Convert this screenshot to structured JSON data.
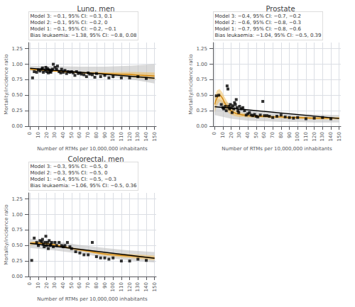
{
  "chart_data": [
    {
      "type": "scatter",
      "title": "Lung, men",
      "xlabel": "Number of RTMs per 10,000,000 inhabitants",
      "ylabel": "Mortality/incidence ratio",
      "xlim": [
        -2,
        152
      ],
      "ylim": [
        0.0,
        1.35
      ],
      "xticks": [
        0,
        10,
        20,
        30,
        40,
        50,
        60,
        70,
        80,
        90,
        100,
        110,
        120,
        130,
        140,
        150
      ],
      "yticks": [
        {
          "value": 0.0,
          "label": "0.00"
        },
        0.25,
        {
          "value": 0.5,
          "label": "0.50"
        },
        0.75,
        {
          "value": 1.0,
          "label": "1.00"
        },
        1.25
      ],
      "grid": true,
      "annotation": "Model 3: −0.1, 95% CI: −0.3, 0.1\nModel 2: −0.1, 95% CI: −0.2, 0\nModel 1: −0.1, 95% CI: −0.2, −0.1\nBias leukaemia: −1.38, 95% CI: −0.8, 0.08",
      "series": [
        {
          "type": "band",
          "color": "#bbbbbb",
          "x": [
            0,
            30,
            60,
            90,
            120,
            150
          ],
          "lower": [
            0.895,
            0.88,
            0.85,
            0.81,
            0.76,
            0.69
          ],
          "upper": [
            0.975,
            0.97,
            0.96,
            0.96,
            0.975,
            1.0
          ]
        },
        {
          "type": "band",
          "color": "#F0C060",
          "x": [
            0,
            5,
            10,
            15,
            20,
            25,
            30,
            35,
            40,
            50,
            60,
            70,
            80,
            90,
            100,
            110,
            120,
            130,
            140,
            150
          ],
          "lower": [
            0.905,
            0.902,
            0.898,
            0.894,
            0.89,
            0.885,
            0.88,
            0.875,
            0.868,
            0.862,
            0.85,
            0.844,
            0.836,
            0.827,
            0.817,
            0.806,
            0.794,
            0.777,
            0.766,
            0.752
          ],
          "upper": [
            0.935,
            0.928,
            0.922,
            0.916,
            0.91,
            0.905,
            0.9,
            0.895,
            0.892,
            0.888,
            0.88,
            0.876,
            0.874,
            0.873,
            0.873,
            0.874,
            0.876,
            0.873,
            0.87,
            0.868
          ]
        },
        {
          "type": "line",
          "color": "#D4860A",
          "x": [
            0,
            5,
            10,
            15,
            20,
            25,
            30,
            35,
            40,
            50,
            60,
            70,
            80,
            90,
            100,
            110,
            120,
            130,
            140,
            150
          ],
          "values": [
            0.92,
            0.915,
            0.91,
            0.905,
            0.9,
            0.895,
            0.89,
            0.885,
            0.88,
            0.875,
            0.865,
            0.86,
            0.855,
            0.85,
            0.845,
            0.84,
            0.835,
            0.825,
            0.818,
            0.81
          ]
        },
        {
          "type": "line",
          "color": "black",
          "x": [
            0,
            150
          ],
          "values": [
            0.935,
            0.775
          ]
        },
        {
          "type": "scatter",
          "color": "black",
          "marker": "square",
          "x": [
            3,
            5,
            8,
            10,
            12,
            14,
            15,
            16,
            18,
            19,
            20,
            21,
            22,
            23,
            24,
            25,
            26,
            27,
            28,
            30,
            32,
            33,
            35,
            37,
            38,
            40,
            42,
            44,
            46,
            48,
            50,
            52,
            54,
            56,
            58,
            60,
            62,
            65,
            68,
            70,
            72,
            75,
            78,
            80,
            85,
            90,
            95,
            100,
            110,
            120,
            130,
            140
          ],
          "values": [
            0.78,
            0.88,
            0.87,
            0.91,
            0.89,
            0.92,
            0.94,
            0.87,
            0.9,
            0.95,
            0.88,
            0.93,
            0.86,
            0.91,
            0.88,
            0.87,
            0.9,
            0.92,
            1.0,
            0.95,
            0.92,
            0.97,
            0.88,
            0.86,
            0.92,
            0.87,
            0.9,
            0.85,
            0.88,
            0.87,
            0.88,
            0.86,
            0.82,
            0.88,
            0.85,
            0.86,
            0.84,
            0.83,
            0.8,
            0.86,
            0.84,
            0.83,
            0.79,
            0.85,
            0.8,
            0.82,
            0.78,
            0.8,
            0.78,
            0.78,
            0.8,
            0.77
          ]
        }
      ]
    },
    {
      "type": "scatter",
      "title": "Prostate",
      "xlabel": "Number of RTMs per 10,000,000 inhabitants",
      "ylabel": "Mortality/incidence ratio",
      "xlim": [
        -2,
        152
      ],
      "ylim": [
        0.0,
        1.35
      ],
      "xticks": [
        0,
        10,
        20,
        30,
        40,
        50,
        60,
        70,
        80,
        90,
        100,
        110,
        120,
        130,
        140,
        150
      ],
      "yticks": [
        {
          "value": 0.0,
          "label": "0.00"
        },
        0.25,
        {
          "value": 0.5,
          "label": "0.50"
        },
        0.75,
        {
          "value": 1.0,
          "label": "1.00"
        },
        1.25
      ],
      "grid": true,
      "annotation": "Model 3: −0.4, 95% CI: −0.7, −0.2\nModel 2: −0.6, 95% CI: −0.8, −0.3\nModel 1: −0.7, 95% CI: −0.8, −0.6\nBias leukaemia: −1.04, 95% CI: −0.5, 0.39",
      "series": [
        {
          "type": "band",
          "color": "#bbbbbb",
          "x": [
            0,
            20,
            40,
            60,
            80,
            100,
            120,
            150
          ],
          "lower": [
            0.18,
            0.12,
            0.09,
            0.08,
            0.07,
            0.07,
            0.06,
            0.06
          ],
          "upper": [
            0.46,
            0.36,
            0.27,
            0.23,
            0.21,
            0.2,
            0.19,
            0.18
          ]
        },
        {
          "type": "band",
          "color": "#F0C060",
          "x": [
            0,
            3,
            6,
            9,
            12,
            15,
            18,
            21,
            25,
            30,
            35,
            40,
            50,
            60,
            70,
            80,
            90,
            100,
            120,
            140,
            150
          ],
          "lower": [
            0.22,
            0.34,
            0.4,
            0.37,
            0.29,
            0.24,
            0.2,
            0.18,
            0.16,
            0.15,
            0.15,
            0.14,
            0.14,
            0.14,
            0.13,
            0.13,
            0.12,
            0.12,
            0.11,
            0.11,
            0.11
          ],
          "upper": [
            0.48,
            0.58,
            0.6,
            0.55,
            0.47,
            0.4,
            0.34,
            0.3,
            0.26,
            0.23,
            0.21,
            0.2,
            0.18,
            0.18,
            0.17,
            0.17,
            0.16,
            0.16,
            0.15,
            0.15,
            0.15
          ]
        },
        {
          "type": "line",
          "color": "#D4860A",
          "x": [
            0,
            3,
            6,
            9,
            12,
            15,
            18,
            21,
            25,
            30,
            35,
            40,
            50,
            60,
            70,
            80,
            90,
            100,
            120,
            140,
            150
          ],
          "values": [
            0.35,
            0.46,
            0.5,
            0.46,
            0.38,
            0.32,
            0.27,
            0.24,
            0.21,
            0.19,
            0.18,
            0.17,
            0.16,
            0.16,
            0.15,
            0.15,
            0.14,
            0.14,
            0.13,
            0.13,
            0.13
          ]
        },
        {
          "type": "line",
          "color": "black",
          "x": [
            0,
            150
          ],
          "values": [
            0.315,
            0.125
          ]
        },
        {
          "type": "scatter",
          "color": "black",
          "marker": "square",
          "x": [
            2,
            5,
            8,
            10,
            11,
            13,
            14,
            15,
            16,
            17,
            18,
            19,
            20,
            21,
            22,
            23,
            24,
            25,
            26,
            27,
            28,
            29,
            30,
            32,
            34,
            36,
            38,
            40,
            42,
            44,
            46,
            48,
            50,
            52,
            55,
            58,
            60,
            63,
            66,
            70,
            75,
            80,
            85,
            90,
            95,
            100,
            110,
            120,
            130,
            140
          ],
          "values": [
            0.49,
            0.5,
            0.35,
            0.3,
            0.28,
            0.32,
            0.25,
            0.65,
            0.6,
            0.32,
            0.28,
            0.35,
            0.3,
            0.22,
            0.33,
            0.28,
            0.38,
            0.35,
            0.43,
            0.3,
            0.25,
            0.22,
            0.32,
            0.28,
            0.3,
            0.25,
            0.18,
            0.2,
            0.22,
            0.18,
            0.17,
            0.19,
            0.16,
            0.15,
            0.18,
            0.4,
            0.17,
            0.17,
            0.16,
            0.14,
            0.16,
            0.18,
            0.15,
            0.14,
            0.13,
            0.14,
            0.12,
            0.13,
            0.14,
            0.12
          ]
        }
      ]
    },
    {
      "type": "scatter",
      "title": "Colorectal, men",
      "xlabel": "Number of RTMs per 10,000,000 inhabitants",
      "ylabel": "Mortality/incidence ratio",
      "xlim": [
        -2,
        152
      ],
      "ylim": [
        0.0,
        1.35
      ],
      "xticks": [
        0,
        10,
        20,
        30,
        40,
        50,
        60,
        70,
        80,
        90,
        100,
        110,
        120,
        130,
        140,
        150
      ],
      "yticks": [
        {
          "value": 0.0,
          "label": "0.00"
        },
        0.25,
        {
          "value": 0.5,
          "label": "0.50"
        },
        0.75,
        {
          "value": 1.0,
          "label": "1.00"
        },
        1.25
      ],
      "grid": true,
      "annotation": "Model 3: −0.3, 95% CI: −0.5, 0\nModel 2: −0.3, 95% CI: −0.5, 0\nModel 1: −0.4, 95% CI: −0.5, −0.3\nBias leukaemia: −1.06, 95% CI: −0.5, 0.36",
      "series": [
        {
          "type": "band",
          "color": "#bbbbbb",
          "x": [
            0,
            30,
            60,
            90,
            120,
            150
          ],
          "lower": [
            0.46,
            0.42,
            0.37,
            0.31,
            0.26,
            0.225
          ],
          "upper": [
            0.61,
            0.57,
            0.51,
            0.46,
            0.42,
            0.395
          ]
        },
        {
          "type": "band",
          "color": "#F0C060",
          "x": [
            0,
            5,
            10,
            15,
            20,
            25,
            30,
            35,
            40,
            50,
            60,
            70,
            80,
            90,
            100,
            110,
            120,
            130,
            140,
            150
          ],
          "lower": [
            0.5,
            0.515,
            0.522,
            0.518,
            0.514,
            0.504,
            0.495,
            0.48,
            0.464,
            0.438,
            0.412,
            0.39,
            0.36,
            0.338,
            0.322,
            0.31,
            0.298,
            0.286,
            0.274,
            0.262
          ],
          "upper": [
            0.56,
            0.565,
            0.558,
            0.552,
            0.546,
            0.536,
            0.525,
            0.51,
            0.496,
            0.472,
            0.448,
            0.43,
            0.41,
            0.392,
            0.378,
            0.37,
            0.362,
            0.354,
            0.346,
            0.338
          ]
        },
        {
          "type": "line",
          "color": "#D4860A",
          "x": [
            0,
            5,
            10,
            15,
            20,
            25,
            30,
            35,
            40,
            50,
            60,
            70,
            80,
            90,
            100,
            110,
            120,
            130,
            140,
            150
          ],
          "values": [
            0.53,
            0.54,
            0.54,
            0.535,
            0.53,
            0.52,
            0.51,
            0.495,
            0.48,
            0.455,
            0.43,
            0.41,
            0.385,
            0.365,
            0.35,
            0.34,
            0.33,
            0.32,
            0.31,
            0.3
          ]
        },
        {
          "type": "line",
          "color": "black",
          "x": [
            0,
            150
          ],
          "values": [
            0.535,
            0.295
          ]
        },
        {
          "type": "scatter",
          "color": "black",
          "marker": "square",
          "x": [
            2,
            5,
            8,
            10,
            12,
            14,
            15,
            16,
            17,
            18,
            19,
            20,
            21,
            22,
            23,
            24,
            25,
            26,
            28,
            30,
            32,
            35,
            38,
            40,
            42,
            45,
            48,
            50,
            55,
            60,
            65,
            70,
            75,
            80,
            85,
            90,
            95,
            100,
            110,
            120,
            130,
            140
          ],
          "values": [
            0.26,
            0.62,
            0.55,
            0.5,
            0.58,
            0.56,
            0.6,
            0.52,
            0.48,
            0.55,
            0.65,
            0.5,
            0.55,
            0.45,
            0.58,
            0.5,
            0.52,
            0.55,
            0.48,
            0.55,
            0.5,
            0.55,
            0.5,
            0.48,
            0.5,
            0.55,
            0.48,
            0.45,
            0.4,
            0.38,
            0.35,
            0.35,
            0.55,
            0.32,
            0.3,
            0.3,
            0.28,
            0.3,
            0.25,
            0.25,
            0.28,
            0.26
          ]
        }
      ]
    }
  ]
}
